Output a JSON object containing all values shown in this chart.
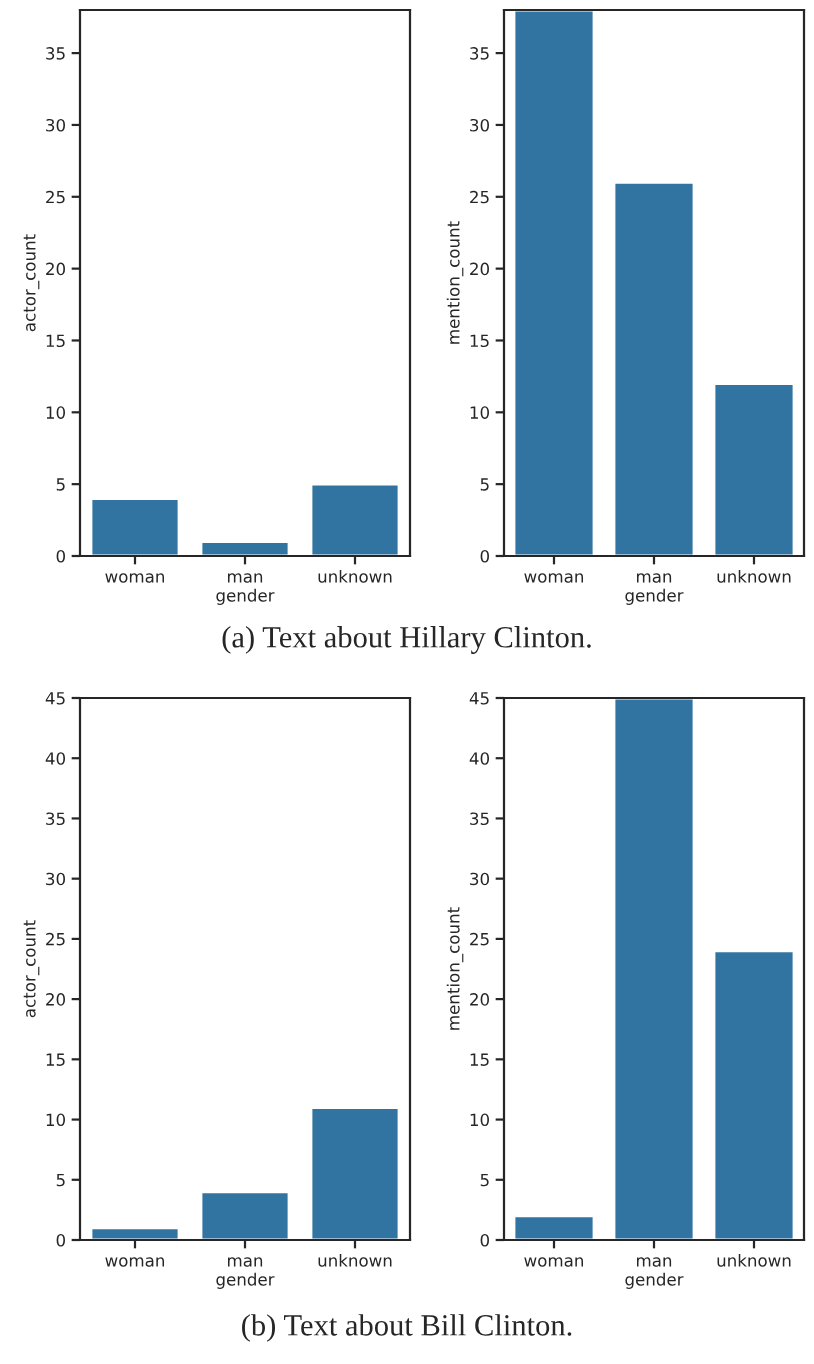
{
  "chart_data": [
    {
      "type": "bar",
      "categories": [
        "woman",
        "man",
        "unknown"
      ],
      "values": [
        4,
        1,
        5
      ],
      "color": "#3274a1",
      "xlabel": "gender",
      "ylabel": "actor_count",
      "ylim": [
        0,
        38
      ],
      "yticks": [
        0,
        5,
        10,
        15,
        20,
        25,
        30,
        35
      ],
      "grid": false,
      "annotations": [
        "(a) Text about Hillary Clinton."
      ]
    },
    {
      "type": "bar",
      "categories": [
        "woman",
        "man",
        "unknown"
      ],
      "values": [
        38,
        26,
        12
      ],
      "color": "#3274a1",
      "xlabel": "gender",
      "ylabel": "mention_count",
      "ylim": [
        0,
        38
      ],
      "yticks": [
        0,
        5,
        10,
        15,
        20,
        25,
        30,
        35
      ],
      "grid": false
    },
    {
      "type": "bar",
      "categories": [
        "woman",
        "man",
        "unknown"
      ],
      "values": [
        1,
        4,
        11
      ],
      "color": "#3274a1",
      "xlabel": "gender",
      "ylabel": "actor_count",
      "ylim": [
        0,
        45
      ],
      "yticks": [
        0,
        5,
        10,
        15,
        20,
        25,
        30,
        35,
        40,
        45
      ],
      "grid": false,
      "annotations": [
        "(b) Text about Bill Clinton."
      ]
    },
    {
      "type": "bar",
      "categories": [
        "woman",
        "man",
        "unknown"
      ],
      "values": [
        2,
        45,
        24
      ],
      "color": "#3274a1",
      "xlabel": "gender",
      "ylabel": "mention_count",
      "ylim": [
        0,
        45
      ],
      "yticks": [
        0,
        5,
        10,
        15,
        20,
        25,
        30,
        35,
        40,
        45
      ],
      "grid": false
    }
  ]
}
